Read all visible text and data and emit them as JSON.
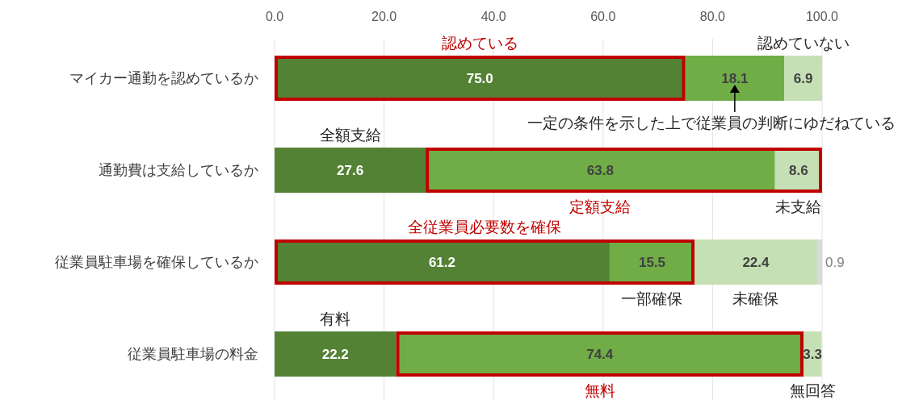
{
  "chart_data": {
    "type": "bar",
    "orientation": "horizontal",
    "stacked": true,
    "categories": [
      "マイカー通勤を認めているか",
      "通勤費は支給しているか",
      "従業員駐車場を確保しているか",
      "従業員駐車場の料金"
    ],
    "series": [
      {
        "color": "#548235",
        "values": [
          75.0,
          27.6,
          61.2,
          22.2
        ],
        "value_labels": [
          "75.0",
          "27.6",
          "61.2",
          "22.2"
        ]
      },
      {
        "color": "#70ad47",
        "values": [
          18.1,
          63.8,
          15.5,
          74.4
        ],
        "value_labels": [
          "18.1",
          "63.8",
          "15.5",
          "74.4"
        ]
      },
      {
        "color": "#c5e0b4",
        "values": [
          6.9,
          8.6,
          22.4,
          3.3
        ],
        "value_labels": [
          "6.9",
          "8.6",
          "22.4",
          "3.3"
        ]
      },
      {
        "color": "#d9d9d9",
        "values": [
          null,
          null,
          0.9,
          null
        ],
        "value_labels": [
          null,
          null,
          "0.9",
          null
        ]
      }
    ],
    "xlim": [
      0,
      100
    ],
    "xticks": [
      {
        "value": 0,
        "label": "0.0"
      },
      {
        "value": 20,
        "label": "20.0"
      },
      {
        "value": 40,
        "label": "40.0"
      },
      {
        "value": 60,
        "label": "60.0"
      },
      {
        "value": 80,
        "label": "80.0"
      },
      {
        "value": 100,
        "label": "100.0"
      }
    ],
    "grid": "x",
    "annotations": [
      "認めている",
      "認めていない",
      "一定の条件を示した上で従業員の判断にゆだねている",
      "全額支給",
      "定額支給",
      "未支給",
      "全従業員必要数を確保",
      "一部確保",
      "未確保",
      "有料",
      "無料",
      "無回答"
    ]
  }
}
